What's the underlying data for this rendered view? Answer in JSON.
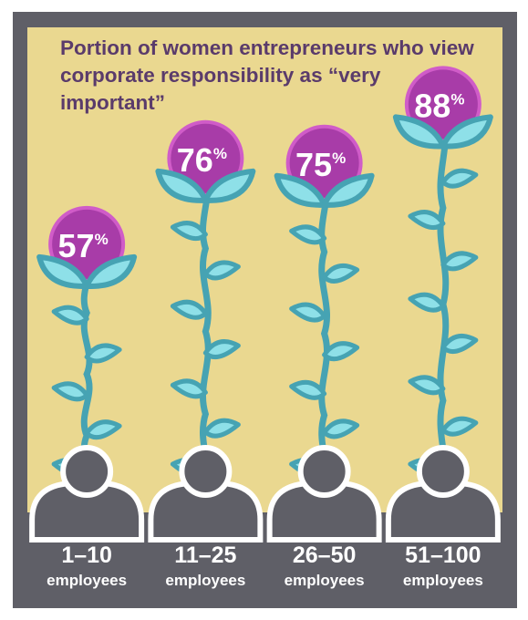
{
  "title": "Portion of women entrepreneurs who view corporate responsibility as “very important”",
  "colors": {
    "frame": "#5f5f67",
    "background": "#ead890",
    "title": "#5a3b6b",
    "stem": "#46a3b3",
    "leaf_fill": "#8ee0e8",
    "leaf_outline": "#46a3b3",
    "bubble": "#a83ca8",
    "bubble_ring": "#d05cc8",
    "person": "#5f5f67",
    "label_text": "#ffffff"
  },
  "icons": [
    "flower-stem-icon",
    "leaf-icon",
    "person-icon"
  ],
  "chart_data": {
    "type": "bar",
    "categories": [
      {
        "range": "1–10",
        "unit": "employees"
      },
      {
        "range": "11–25",
        "unit": "employees"
      },
      {
        "range": "26–50",
        "unit": "employees"
      },
      {
        "range": "51–100",
        "unit": "employees"
      }
    ],
    "values": [
      57,
      76,
      75,
      88
    ],
    "value_suffix": "%"
  }
}
